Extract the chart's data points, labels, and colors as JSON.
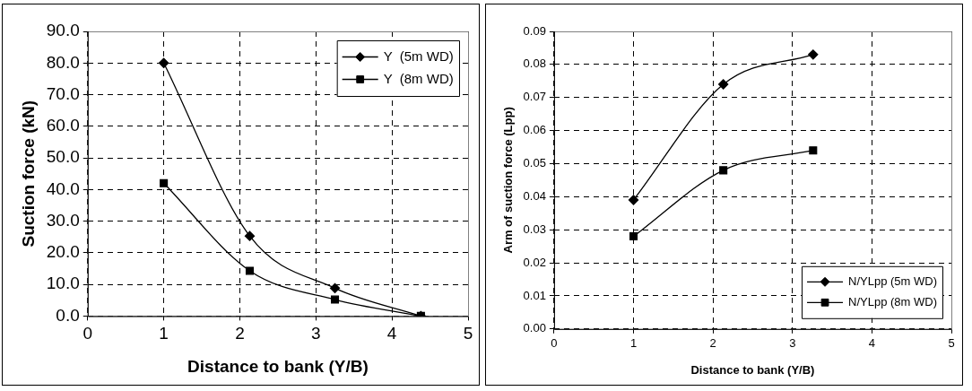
{
  "chart_data": [
    {
      "type": "line",
      "xlabel": "Distance to bank (Y/B)",
      "ylabel": "Suction force (kN)",
      "xlim": [
        0,
        5
      ],
      "xticks": [
        0,
        1,
        2,
        3,
        4,
        5
      ],
      "ylim": [
        0,
        90
      ],
      "yticks": [
        {
          "value": 0,
          "label": "0.0"
        },
        {
          "value": 10,
          "label": "10.0"
        },
        {
          "value": 20,
          "label": "20.0"
        },
        {
          "value": 30,
          "label": "30.0"
        },
        {
          "value": 40,
          "label": "40.0"
        },
        {
          "value": 50,
          "label": "50.0"
        },
        {
          "value": 60,
          "label": "60.0"
        },
        {
          "value": 70,
          "label": "70.0"
        },
        {
          "value": 80,
          "label": "80.0"
        },
        {
          "value": 90,
          "label": "90.0"
        }
      ],
      "grid": true,
      "legend": "top right",
      "series": [
        {
          "name": "Y  (5m WD)",
          "color": "#000000",
          "marker": "diamond",
          "x": [
            1,
            2.13,
            3.25,
            4.38
          ],
          "values": [
            80,
            25.3,
            8.8,
            0
          ]
        },
        {
          "name": "Y  (8m WD)",
          "color": "#000000",
          "marker": "square",
          "x": [
            1,
            2.13,
            3.25,
            4.38
          ],
          "values": [
            42,
            14.3,
            5.2,
            0
          ]
        }
      ]
    },
    {
      "type": "line",
      "xlabel": "Distance to bank (Y/B)",
      "ylabel": "Arm of suction force (Lpp)",
      "xlim": [
        0,
        5
      ],
      "xticks": [
        0,
        1,
        2,
        3,
        4,
        5
      ],
      "ylim": [
        0,
        0.09
      ],
      "yticks": [
        {
          "value": 0,
          "label": "0.00"
        },
        {
          "value": 0.01,
          "label": "0.01"
        },
        {
          "value": 0.02,
          "label": "0.02"
        },
        {
          "value": 0.03,
          "label": "0.03"
        },
        {
          "value": 0.04,
          "label": "0.04"
        },
        {
          "value": 0.05,
          "label": "0.05"
        },
        {
          "value": 0.06,
          "label": "0.06"
        },
        {
          "value": 0.07,
          "label": "0.07"
        },
        {
          "value": 0.08,
          "label": "0.08"
        },
        {
          "value": 0.09,
          "label": "0.09"
        }
      ],
      "grid": true,
      "legend": "bottom right",
      "series": [
        {
          "name": "N/YLpp (5m WD)",
          "color": "#000000",
          "marker": "diamond",
          "x": [
            1,
            2.13,
            3.26
          ],
          "values": [
            0.039,
            0.074,
            0.083
          ]
        },
        {
          "name": "N/YLpp (8m WD)",
          "color": "#000000",
          "marker": "square",
          "x": [
            1,
            2.13,
            3.26
          ],
          "values": [
            0.028,
            0.048,
            0.054
          ]
        }
      ]
    }
  ]
}
